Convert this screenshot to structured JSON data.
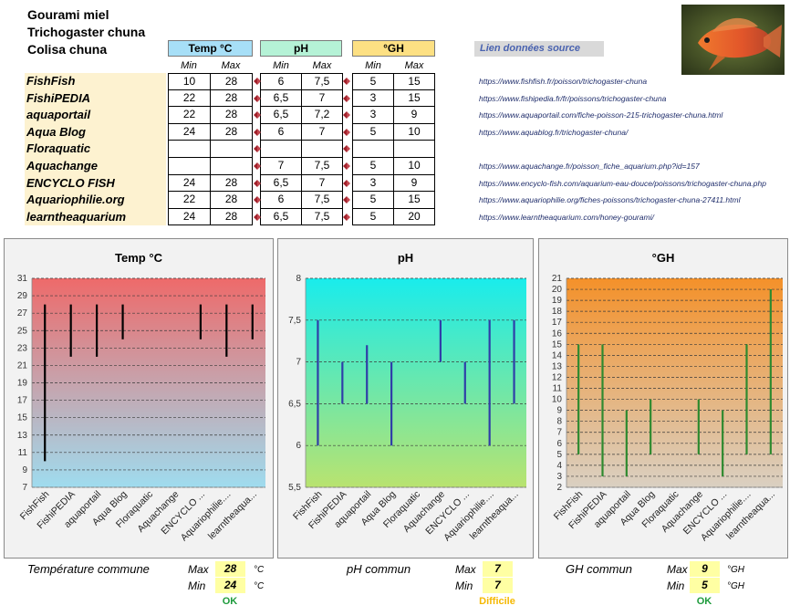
{
  "page": {
    "title_lines": [
      "Gourami miel",
      "Trichogaster chuna",
      "Colisa chuna"
    ],
    "source_link_label": "Lien données source"
  },
  "colors": {
    "temp_header": "#a7dff7",
    "ph_header": "#b5f2d6",
    "gh_header": "#fde083",
    "marker": "#a0202a",
    "temp_bar": "#000000",
    "ph_bar": "#2f3ea8",
    "gh_bar": "#2f8a2f",
    "ok": "#1e9b3c",
    "difficile": "#f5b800",
    "value_box": "#ffffa3"
  },
  "table": {
    "groups": [
      {
        "label": "Temp °C",
        "min_label": "Min",
        "max_label": "Max"
      },
      {
        "label": "pH",
        "min_label": "Min",
        "max_label": "Max"
      },
      {
        "label": "°GH",
        "min_label": "Min",
        "max_label": "Max"
      }
    ],
    "rows": [
      {
        "source": "FishFish",
        "temp_min": "10",
        "temp_max": "28",
        "ph_min": "6",
        "ph_max": "7,5",
        "gh_min": "5",
        "gh_max": "15",
        "url": "https://www.fishfish.fr/poisson/trichogaster-chuna"
      },
      {
        "source": "FishiPEDIA",
        "temp_min": "22",
        "temp_max": "28",
        "ph_min": "6,5",
        "ph_max": "7",
        "gh_min": "3",
        "gh_max": "15",
        "url": "https://www.fishipedia.fr/fr/poissons/trichogaster-chuna"
      },
      {
        "source": "aquaportail",
        "temp_min": "22",
        "temp_max": "28",
        "ph_min": "6,5",
        "ph_max": "7,2",
        "gh_min": "3",
        "gh_max": "9",
        "url": "https://www.aquaportail.com/fiche-poisson-215-trichogaster-chuna.html"
      },
      {
        "source": "Aqua Blog",
        "temp_min": "24",
        "temp_max": "28",
        "ph_min": "6",
        "ph_max": "7",
        "gh_min": "5",
        "gh_max": "10",
        "url": "https://www.aquablog.fr/trichogaster-chuna/"
      },
      {
        "source": "Floraquatic",
        "temp_min": "",
        "temp_max": "",
        "ph_min": "",
        "ph_max": "",
        "gh_min": "",
        "gh_max": "",
        "url": ""
      },
      {
        "source": "Aquachange",
        "temp_min": "",
        "temp_max": "",
        "ph_min": "7",
        "ph_max": "7,5",
        "gh_min": "5",
        "gh_max": "10",
        "url": "https://www.aquachange.fr/poisson_fiche_aquarium.php?id=157"
      },
      {
        "source": "ENCYCLO FISH",
        "temp_min": "24",
        "temp_max": "28",
        "ph_min": "6,5",
        "ph_max": "7",
        "gh_min": "3",
        "gh_max": "9",
        "url": "https://www.encyclo-fish.com/aquarium-eau-douce/poissons/trichogaster-chuna.php"
      },
      {
        "source": "Aquariophilie.org",
        "temp_min": "22",
        "temp_max": "28",
        "ph_min": "6",
        "ph_max": "7,5",
        "gh_min": "5",
        "gh_max": "15",
        "url": "https://www.aquariophilie.org/fiches-poissons/trichogaster-chuna-27411.html"
      },
      {
        "source": "learntheaquarium",
        "temp_min": "24",
        "temp_max": "28",
        "ph_min": "6,5",
        "ph_max": "7,5",
        "gh_min": "5",
        "gh_max": "20",
        "url": "https://www.learntheaquarium.com/honey-gourami/"
      }
    ]
  },
  "chart_data": [
    {
      "type": "range-bar",
      "title": "Temp °C",
      "categories": [
        "FishFish",
        "FishiPEDIA",
        "aquaportail",
        "Aqua Blog",
        "Floraquatic",
        "Aquachange",
        "ENCYCLO ...",
        "Aquariophilie....",
        "learntheaqua..."
      ],
      "series": [
        {
          "name": "Min",
          "values": [
            10,
            22,
            22,
            24,
            null,
            null,
            24,
            22,
            24
          ]
        },
        {
          "name": "Max",
          "values": [
            28,
            28,
            28,
            28,
            null,
            null,
            28,
            28,
            28
          ]
        }
      ],
      "ylim": [
        7,
        31
      ],
      "yticks": [
        "7",
        "9",
        "11",
        "13",
        "15",
        "17",
        "19",
        "21",
        "23",
        "25",
        "27",
        "29",
        "31"
      ],
      "grid": true,
      "bar_color": "#000000",
      "gradient": [
        "#ee6a6a",
        "#9fdcef"
      ]
    },
    {
      "type": "range-bar",
      "title": "pH",
      "categories": [
        "FishFish",
        "FishiPEDIA",
        "aquaportail",
        "Aqua Blog",
        "Floraquatic",
        "Aquachange",
        "ENCYCLO ...",
        "Aquariophilie....",
        "learntheaqua..."
      ],
      "series": [
        {
          "name": "Min",
          "values": [
            6,
            6.5,
            6.5,
            6,
            null,
            7,
            6.5,
            6,
            6.5
          ]
        },
        {
          "name": "Max",
          "values": [
            7.5,
            7,
            7.2,
            7,
            null,
            7.5,
            7,
            7.5,
            7.5
          ]
        }
      ],
      "ylim": [
        5.5,
        8
      ],
      "yticks": [
        "5,5",
        "6",
        "6,5",
        "7",
        "7,5",
        "8"
      ],
      "grid": true,
      "bar_color": "#2f3ea8",
      "gradient": [
        "#19ecec",
        "#b9e36f"
      ]
    },
    {
      "type": "range-bar",
      "title": "°GH",
      "categories": [
        "FishFish",
        "FishiPEDIA",
        "aquaportail",
        "Aqua Blog",
        "Floraquatic",
        "Aquachange",
        "ENCYCLO ...",
        "Aquariophilie....",
        "learntheaqua..."
      ],
      "series": [
        {
          "name": "Min",
          "values": [
            5,
            3,
            3,
            5,
            null,
            5,
            3,
            5,
            5
          ]
        },
        {
          "name": "Max",
          "values": [
            15,
            15,
            9,
            10,
            null,
            10,
            9,
            15,
            20
          ]
        }
      ],
      "ylim": [
        2,
        21
      ],
      "yticks": [
        "2",
        "3",
        "4",
        "5",
        "6",
        "7",
        "8",
        "9",
        "10",
        "11",
        "12",
        "13",
        "14",
        "15",
        "16",
        "17",
        "18",
        "19",
        "20",
        "21"
      ],
      "grid": true,
      "bar_color": "#2f8a2f",
      "gradient": [
        "#f4912a",
        "#dad0c2"
      ]
    }
  ],
  "summary": {
    "temp": {
      "label": "Température commune",
      "max_label": "Max",
      "min_label": "Min",
      "max": "28",
      "min": "24",
      "unit": "°C",
      "status": "OK"
    },
    "ph": {
      "label": "pH commun",
      "max_label": "Max",
      "min_label": "Min",
      "max": "7",
      "min": "7",
      "unit": "",
      "status": "Difficile"
    },
    "gh": {
      "label": "GH commun",
      "max_label": "Max",
      "min_label": "Min",
      "max": "9",
      "min": "5",
      "unit": "°GH",
      "status": "OK"
    }
  }
}
